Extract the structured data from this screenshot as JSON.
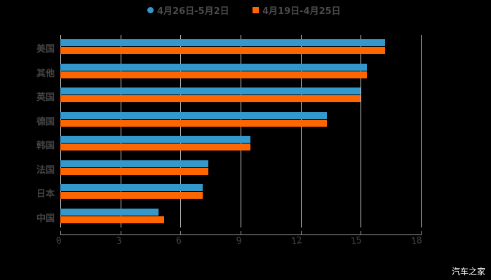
{
  "legend": {
    "series1": "4月26日-5月2日",
    "series2": "4月19日-4月25日"
  },
  "colors": {
    "series1": "#3399CC",
    "series2": "#FF6600"
  },
  "x_ticks": [
    "0",
    "3",
    "6",
    "9",
    "12",
    "15",
    "18"
  ],
  "categories": [
    "美国",
    "其他",
    "英国",
    "德国",
    "韩国",
    "法国",
    "日本",
    "中国"
  ],
  "watermark": "汽车之家",
  "chart_data": {
    "type": "bar",
    "orientation": "horizontal",
    "title": "",
    "xlabel": "",
    "ylabel": "",
    "categories": [
      "美国",
      "其他",
      "英国",
      "德国",
      "韩国",
      "法国",
      "日本",
      "中国"
    ],
    "series": [
      {
        "name": "4月26日-5月2日",
        "color": "#3399CC",
        "values": [
          16.2,
          15.3,
          15.0,
          13.3,
          9.5,
          7.4,
          7.1,
          4.9
        ]
      },
      {
        "name": "4月19日-4月25日",
        "color": "#FF6600",
        "values": [
          16.2,
          15.3,
          15.0,
          13.3,
          9.5,
          7.4,
          7.1,
          5.2
        ]
      }
    ],
    "xlim": [
      0,
      18
    ],
    "x_ticks": [
      0,
      3,
      6,
      9,
      12,
      15,
      18
    ],
    "grid": true,
    "legend_position": "top"
  }
}
